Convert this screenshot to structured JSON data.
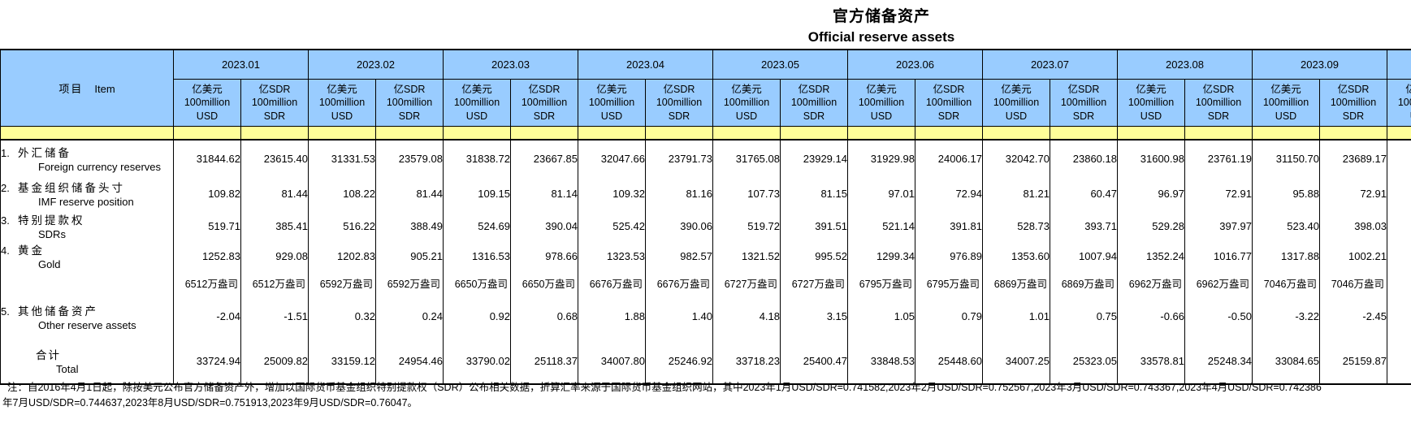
{
  "title": {
    "zh": "官方储备资产",
    "en": "Official reserve assets"
  },
  "table": {
    "item_header_zh": "项目",
    "item_header_en": "Item",
    "months": [
      "2023.01",
      "2023.02",
      "2023.03",
      "2023.04",
      "2023.05",
      "2023.06",
      "2023.07",
      "2023.08",
      "2023.09"
    ],
    "units": {
      "usd": [
        "亿美元",
        "100million",
        "USD"
      ],
      "sdr": [
        "亿SDR",
        "100million",
        "SDR"
      ]
    },
    "rows": [
      {
        "type": "data",
        "no": "1.",
        "zh": "外汇储备",
        "en": "Foreign currency reserves",
        "values": [
          "31844.62",
          "23615.40",
          "31331.53",
          "23579.08",
          "31838.72",
          "23667.85",
          "32047.66",
          "23791.73",
          "31765.08",
          "23929.14",
          "31929.98",
          "24006.17",
          "32042.70",
          "23860.18",
          "31600.98",
          "23761.19",
          "31150.70",
          "23689.17"
        ]
      },
      {
        "type": "data",
        "no": "2.",
        "zh": "基金组织储备头寸",
        "en": "IMF reserve position",
        "values": [
          "109.82",
          "81.44",
          "108.22",
          "81.44",
          "109.15",
          "81.14",
          "109.32",
          "81.16",
          "107.73",
          "81.15",
          "97.01",
          "72.94",
          "81.21",
          "60.47",
          "96.97",
          "72.91",
          "95.88",
          "72.91"
        ]
      },
      {
        "type": "data",
        "no": "3.",
        "zh": "特别提款权",
        "en": "SDRs",
        "values": [
          "519.71",
          "385.41",
          "516.22",
          "388.49",
          "524.69",
          "390.04",
          "525.42",
          "390.06",
          "519.72",
          "391.51",
          "521.14",
          "391.81",
          "528.73",
          "393.71",
          "529.28",
          "397.97",
          "523.40",
          "398.03"
        ]
      },
      {
        "type": "data",
        "no": "4.",
        "zh": "黄金",
        "en": "Gold",
        "values": [
          "1252.83",
          "929.08",
          "1202.83",
          "905.21",
          "1316.53",
          "978.66",
          "1323.53",
          "982.57",
          "1321.52",
          "995.52",
          "1299.34",
          "976.89",
          "1353.60",
          "1007.94",
          "1352.24",
          "1016.77",
          "1317.88",
          "1002.21"
        ]
      },
      {
        "type": "gold-ounces",
        "no": "",
        "zh": "",
        "en": "",
        "values": [
          "6512万盎司",
          "6512万盎司",
          "6592万盎司",
          "6592万盎司",
          "6650万盎司",
          "6650万盎司",
          "6676万盎司",
          "6676万盎司",
          "6727万盎司",
          "6727万盎司",
          "6795万盎司",
          "6795万盎司",
          "6869万盎司",
          "6869万盎司",
          "6962万盎司",
          "6962万盎司",
          "7046万盎司",
          "7046万盎司"
        ]
      },
      {
        "type": "data",
        "no": "5.",
        "zh": "其他储备资产",
        "en": "Other reserve assets",
        "values": [
          "-2.04",
          "-1.51",
          "0.32",
          "0.24",
          "0.92",
          "0.68",
          "1.88",
          "1.40",
          "4.18",
          "3.15",
          "1.05",
          "0.79",
          "1.01",
          "0.75",
          "-0.66",
          "-0.50",
          "-3.22",
          "-2.45"
        ]
      },
      {
        "type": "total",
        "no": "",
        "zh": "合计",
        "en": "Total",
        "values": [
          "33724.94",
          "25009.82",
          "33159.12",
          "24954.46",
          "33790.02",
          "25118.37",
          "34007.80",
          "25246.92",
          "33718.23",
          "25400.47",
          "33848.53",
          "25448.60",
          "34007.25",
          "25323.05",
          "33578.81",
          "25248.34",
          "33084.65",
          "25159.87"
        ]
      }
    ]
  },
  "note": {
    "line1": "注：自2016年4月1日起，除按美元公布官方储备资产外，增加以国际货币基金组织特别提款权（SDR）公布相关数据，折算汇率来源于国际货币基金组织网站，其中2023年1月USD/SDR=0.741582,2023年2月USD/SDR=0.752567,2023年3月USD/SDR=0.743367,2023年4月USD/SDR=0.742386",
    "line2": "年7月USD/SDR=0.744637,2023年8月USD/SDR=0.751913,2023年9月USD/SDR=0.76047。"
  }
}
